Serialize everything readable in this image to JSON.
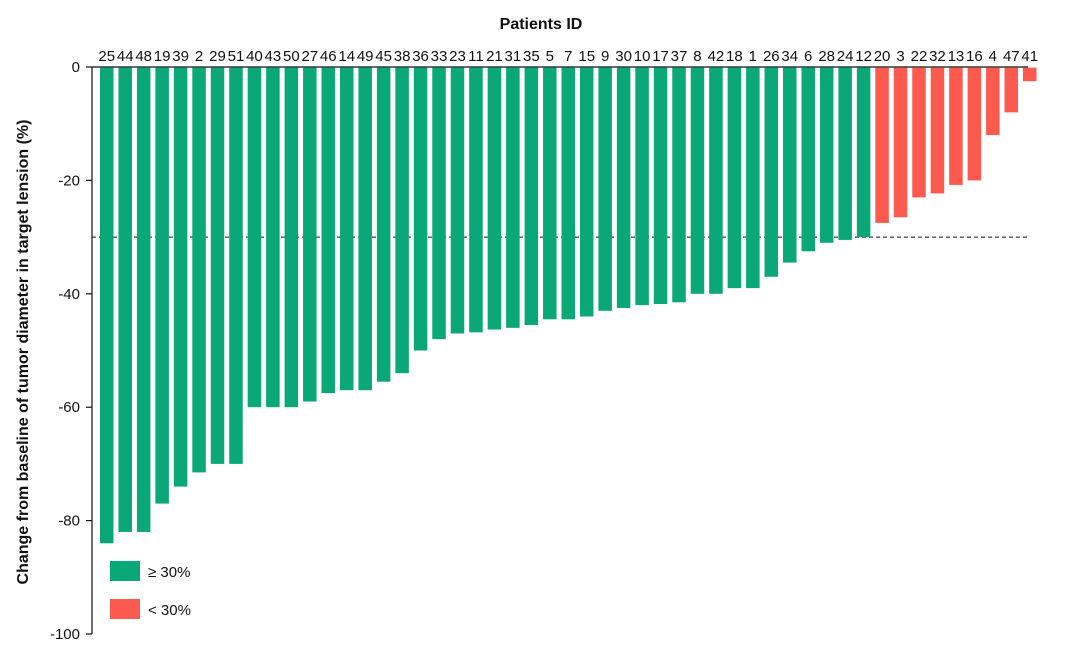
{
  "chart_data": {
    "type": "bar",
    "title": "Patients ID",
    "ylabel": "Change from baseline of tumor diameter in target lension (%)",
    "xlabel": "",
    "ylim": [
      -100,
      0
    ],
    "yticks": [
      0,
      -20,
      -40,
      -60,
      -80,
      -100
    ],
    "threshold": -30,
    "categories": [
      "25",
      "44",
      "48",
      "19",
      "39",
      "2",
      "29",
      "51",
      "40",
      "43",
      "50",
      "27",
      "46",
      "14",
      "49",
      "45",
      "38",
      "36",
      "33",
      "23",
      "11",
      "21",
      "31",
      "35",
      "5",
      "7",
      "15",
      "9",
      "30",
      "10",
      "17",
      "37",
      "8",
      "42",
      "18",
      "1",
      "26",
      "34",
      "6",
      "28",
      "24",
      "12",
      "20",
      "3",
      "22",
      "32",
      "13",
      "16",
      "4",
      "47",
      "41"
    ],
    "values": [
      -84,
      -82,
      -82,
      -77,
      -74,
      -71.5,
      -70,
      -70,
      -60,
      -60,
      -60,
      -59,
      -57.5,
      -57,
      -57,
      -55.5,
      -54,
      -50,
      -48,
      -47,
      -46.8,
      -46.3,
      -46,
      -45.5,
      -44.5,
      -44.5,
      -44,
      -43,
      -42.5,
      -42,
      -41.8,
      -41.5,
      -40,
      -40,
      -39,
      -39,
      -37,
      -34.5,
      -32.5,
      -31,
      -30.5,
      -30,
      -27.5,
      -26.5,
      -23,
      -22.3,
      -20.8,
      -20,
      -12,
      -8,
      -2.5
    ],
    "series": [
      {
        "name": "≥ 30%",
        "color": "#0aa777"
      },
      {
        "name": "< 30%",
        "color": "#fd5a4f"
      }
    ],
    "responder_count": 42,
    "legend": {
      "placement": "bottom-left"
    }
  }
}
